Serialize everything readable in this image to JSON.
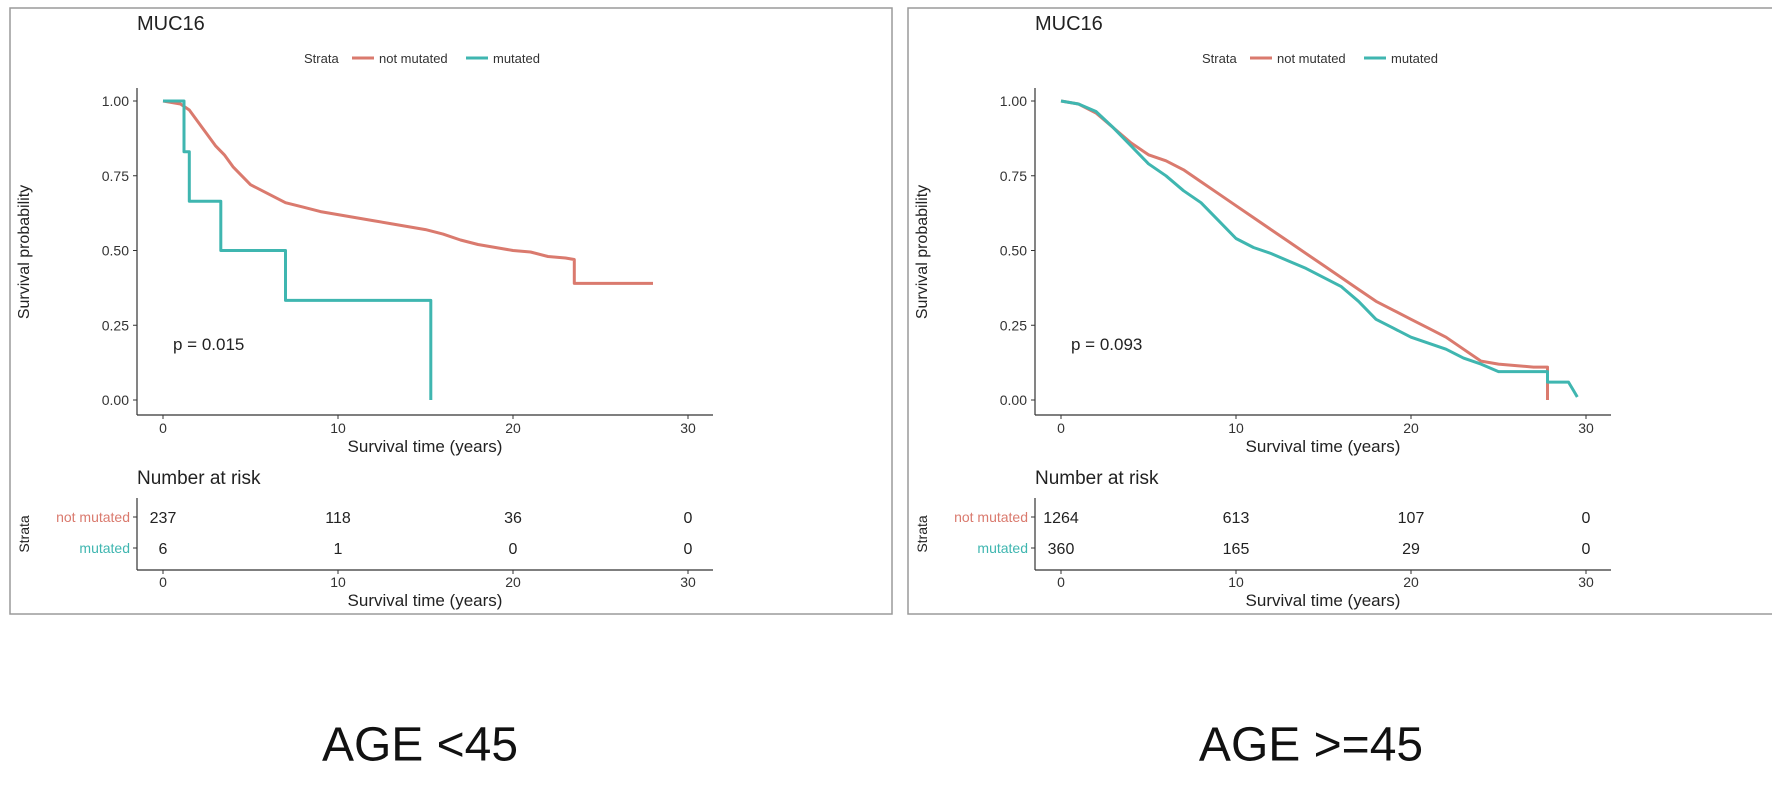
{
  "colors": {
    "not_mutated": "#DA7A6E",
    "mutated": "#3FB6B0"
  },
  "chart_data": [
    {
      "type": "line",
      "title": "MUC16",
      "caption": "AGE <45",
      "xlabel": "Survival time (years)",
      "ylabel": "Survival probability",
      "xlim": [
        0,
        30
      ],
      "ylim": [
        0,
        1
      ],
      "xticks": [
        "0",
        "10",
        "20",
        "30"
      ],
      "yticks": [
        "0.00",
        "0.25",
        "0.50",
        "0.75",
        "1.00"
      ],
      "legend": {
        "title": "Strata",
        "entries": [
          "not mutated",
          "mutated"
        ]
      },
      "p_value": "p = 0.015",
      "series": [
        {
          "name": "not mutated",
          "points": [
            [
              0,
              1.0
            ],
            [
              1,
              0.99
            ],
            [
              1.5,
              0.97
            ],
            [
              2,
              0.93
            ],
            [
              2.5,
              0.89
            ],
            [
              3,
              0.85
            ],
            [
              3.5,
              0.82
            ],
            [
              4,
              0.78
            ],
            [
              4.5,
              0.75
            ],
            [
              5,
              0.72
            ],
            [
              6,
              0.69
            ],
            [
              7,
              0.66
            ],
            [
              8,
              0.645
            ],
            [
              9,
              0.63
            ],
            [
              10,
              0.62
            ],
            [
              11,
              0.61
            ],
            [
              12,
              0.6
            ],
            [
              13,
              0.59
            ],
            [
              14,
              0.58
            ],
            [
              15,
              0.57
            ],
            [
              16,
              0.555
            ],
            [
              17,
              0.535
            ],
            [
              18,
              0.52
            ],
            [
              19,
              0.51
            ],
            [
              20,
              0.5
            ],
            [
              21,
              0.495
            ],
            [
              22,
              0.48
            ],
            [
              23,
              0.475
            ],
            [
              23.5,
              0.47
            ],
            [
              23.5,
              0.39
            ],
            [
              25,
              0.39
            ],
            [
              28,
              0.39
            ]
          ]
        },
        {
          "name": "mutated",
          "points": [
            [
              0,
              1.0
            ],
            [
              1.2,
              1.0
            ],
            [
              1.2,
              0.83
            ],
            [
              1.5,
              0.83
            ],
            [
              1.5,
              0.665
            ],
            [
              3.3,
              0.665
            ],
            [
              3.3,
              0.5
            ],
            [
              7,
              0.5
            ],
            [
              7,
              0.333
            ],
            [
              15.3,
              0.333
            ],
            [
              15.3,
              0.0
            ]
          ]
        }
      ],
      "risk_table": {
        "title": "Number at risk",
        "strata_label": "Strata",
        "times": [
          "0",
          "10",
          "20",
          "30"
        ],
        "xlabel": "Survival time (years)",
        "rows": [
          {
            "name": "not mutated",
            "values": [
              "237",
              "118",
              "36",
              "0"
            ]
          },
          {
            "name": "mutated",
            "values": [
              "6",
              "1",
              "0",
              "0"
            ]
          }
        ]
      }
    },
    {
      "type": "line",
      "title": "MUC16",
      "caption": "AGE >=45",
      "xlabel": "Survival time (years)",
      "ylabel": "Survival probability",
      "xlim": [
        0,
        30
      ],
      "ylim": [
        0,
        1
      ],
      "xticks": [
        "0",
        "10",
        "20",
        "30"
      ],
      "yticks": [
        "0.00",
        "0.25",
        "0.50",
        "0.75",
        "1.00"
      ],
      "legend": {
        "title": "Strata",
        "entries": [
          "not mutated",
          "mutated"
        ]
      },
      "p_value": "p = 0.093",
      "series": [
        {
          "name": "not mutated",
          "points": [
            [
              0,
              1.0
            ],
            [
              1,
              0.99
            ],
            [
              2,
              0.96
            ],
            [
              3,
              0.91
            ],
            [
              4,
              0.86
            ],
            [
              5,
              0.82
            ],
            [
              6,
              0.8
            ],
            [
              7,
              0.77
            ],
            [
              8,
              0.73
            ],
            [
              9,
              0.69
            ],
            [
              10,
              0.65
            ],
            [
              11,
              0.61
            ],
            [
              12,
              0.57
            ],
            [
              13,
              0.53
            ],
            [
              14,
              0.49
            ],
            [
              15,
              0.45
            ],
            [
              16,
              0.41
            ],
            [
              17,
              0.37
            ],
            [
              18,
              0.33
            ],
            [
              19,
              0.3
            ],
            [
              20,
              0.27
            ],
            [
              21,
              0.24
            ],
            [
              22,
              0.21
            ],
            [
              23,
              0.17
            ],
            [
              24,
              0.13
            ],
            [
              25,
              0.12
            ],
            [
              26,
              0.115
            ],
            [
              27,
              0.11
            ],
            [
              27.8,
              0.11
            ],
            [
              27.8,
              0.0
            ]
          ]
        },
        {
          "name": "mutated",
          "points": [
            [
              0,
              1.0
            ],
            [
              1,
              0.99
            ],
            [
              2,
              0.965
            ],
            [
              3,
              0.91
            ],
            [
              4,
              0.85
            ],
            [
              5,
              0.79
            ],
            [
              6,
              0.75
            ],
            [
              7,
              0.7
            ],
            [
              8,
              0.66
            ],
            [
              9,
              0.6
            ],
            [
              10,
              0.54
            ],
            [
              11,
              0.51
            ],
            [
              12,
              0.49
            ],
            [
              13,
              0.465
            ],
            [
              14,
              0.44
            ],
            [
              15,
              0.41
            ],
            [
              16,
              0.38
            ],
            [
              17,
              0.33
            ],
            [
              18,
              0.27
            ],
            [
              19,
              0.24
            ],
            [
              20,
              0.21
            ],
            [
              21,
              0.19
            ],
            [
              22,
              0.17
            ],
            [
              23,
              0.14
            ],
            [
              24,
              0.12
            ],
            [
              25,
              0.095
            ],
            [
              26,
              0.095
            ],
            [
              27.8,
              0.095
            ],
            [
              27.8,
              0.06
            ],
            [
              29,
              0.06
            ],
            [
              29.3,
              0.03
            ],
            [
              29.5,
              0.01
            ]
          ]
        }
      ],
      "risk_table": {
        "title": "Number at risk",
        "strata_label": "Strata",
        "times": [
          "0",
          "10",
          "20",
          "30"
        ],
        "xlabel": "Survival time (years)",
        "rows": [
          {
            "name": "not mutated",
            "values": [
              "1264",
              "613",
              "107",
              "0"
            ]
          },
          {
            "name": "mutated",
            "values": [
              "360",
              "165",
              "29",
              "0"
            ]
          }
        ]
      }
    }
  ]
}
